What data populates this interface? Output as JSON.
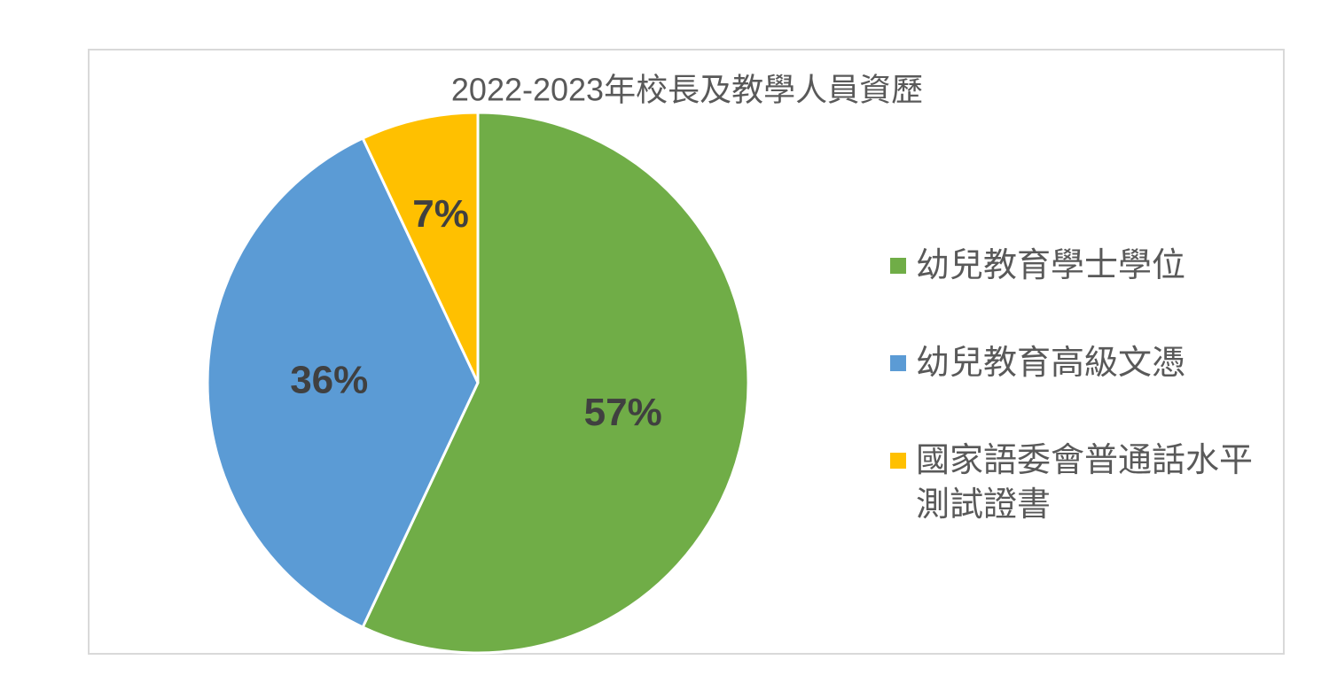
{
  "chart_data": {
    "type": "pie",
    "title": "2022-2023年校長及教學人員資歷",
    "categories": [
      "幼兒教育學士學位",
      "幼兒教育高級文憑",
      "國家語委會普通話水平測試證書"
    ],
    "values": [
      57,
      36,
      7
    ],
    "value_labels": [
      "57%",
      "36%",
      "7%"
    ],
    "colors": [
      "#70ad47",
      "#5b9bd5",
      "#ffc000"
    ],
    "legend": "right"
  }
}
